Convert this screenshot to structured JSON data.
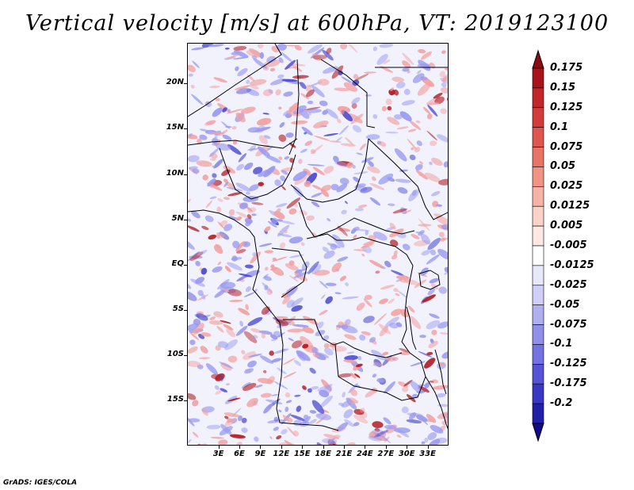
{
  "title": "Vertical velocity [m/s] at 600hPa, VT: 2019123100",
  "footer": "GrADS: IGES/COLA",
  "map": {
    "variable": "Vertical velocity",
    "units": "m/s",
    "level": "600hPa",
    "valid_time": "2019123100",
    "lon_range": [
      -1.5,
      36
    ],
    "lat_range": [
      -20,
      24.5
    ],
    "lat_labels": [
      {
        "value": 20,
        "text": "20N"
      },
      {
        "value": 15,
        "text": "15N"
      },
      {
        "value": 10,
        "text": "10N"
      },
      {
        "value": 5,
        "text": "5N"
      },
      {
        "value": 0,
        "text": "EQ"
      },
      {
        "value": -5,
        "text": "5S"
      },
      {
        "value": -10,
        "text": "10S"
      },
      {
        "value": -15,
        "text": "15S"
      }
    ],
    "lon_labels": [
      {
        "value": 3,
        "text": "3E"
      },
      {
        "value": 6,
        "text": "6E"
      },
      {
        "value": 9,
        "text": "9E"
      },
      {
        "value": 12,
        "text": "12E"
      },
      {
        "value": 15,
        "text": "15E"
      },
      {
        "value": 18,
        "text": "18E"
      },
      {
        "value": 21,
        "text": "21E"
      },
      {
        "value": 24,
        "text": "24E"
      },
      {
        "value": 27,
        "text": "27E"
      },
      {
        "value": 30,
        "text": "30E"
      },
      {
        "value": 33,
        "text": "33E"
      }
    ]
  },
  "colorbar": {
    "levels": [
      {
        "text": "0.175",
        "color": "#a8141c"
      },
      {
        "text": "0.15",
        "color": "#c0262a"
      },
      {
        "text": "0.125",
        "color": "#d23c3a"
      },
      {
        "text": "0.1",
        "color": "#df5650"
      },
      {
        "text": "0.075",
        "color": "#e87468"
      },
      {
        "text": "0.05",
        "color": "#f09484"
      },
      {
        "text": "0.025",
        "color": "#f6b4a6"
      },
      {
        "text": "0.0125",
        "color": "#fad2c8"
      },
      {
        "text": "0.005",
        "color": "#fde8e4"
      },
      {
        "text": "-0.005",
        "color": "#ffffff"
      },
      {
        "text": "-0.0125",
        "color": "#e8e8fb"
      },
      {
        "text": "-0.025",
        "color": "#cfcff7"
      },
      {
        "text": "-0.05",
        "color": "#b0b0f1"
      },
      {
        "text": "-0.075",
        "color": "#9090ea"
      },
      {
        "text": "-0.1",
        "color": "#7272e0"
      },
      {
        "text": "-0.125",
        "color": "#5454d4"
      },
      {
        "text": "-0.175",
        "color": "#3838c2"
      },
      {
        "text": "-0.2",
        "color": "#2020a8"
      }
    ],
    "top_arrow_color": "#8c0a12",
    "bottom_arrow_color": "#140a8c"
  },
  "colors": {
    "positive_strong": "#b01c22",
    "positive": "#f2a0a0",
    "negative": "#9a9af0",
    "negative_strong": "#4a4ad0",
    "border": "#000000"
  }
}
